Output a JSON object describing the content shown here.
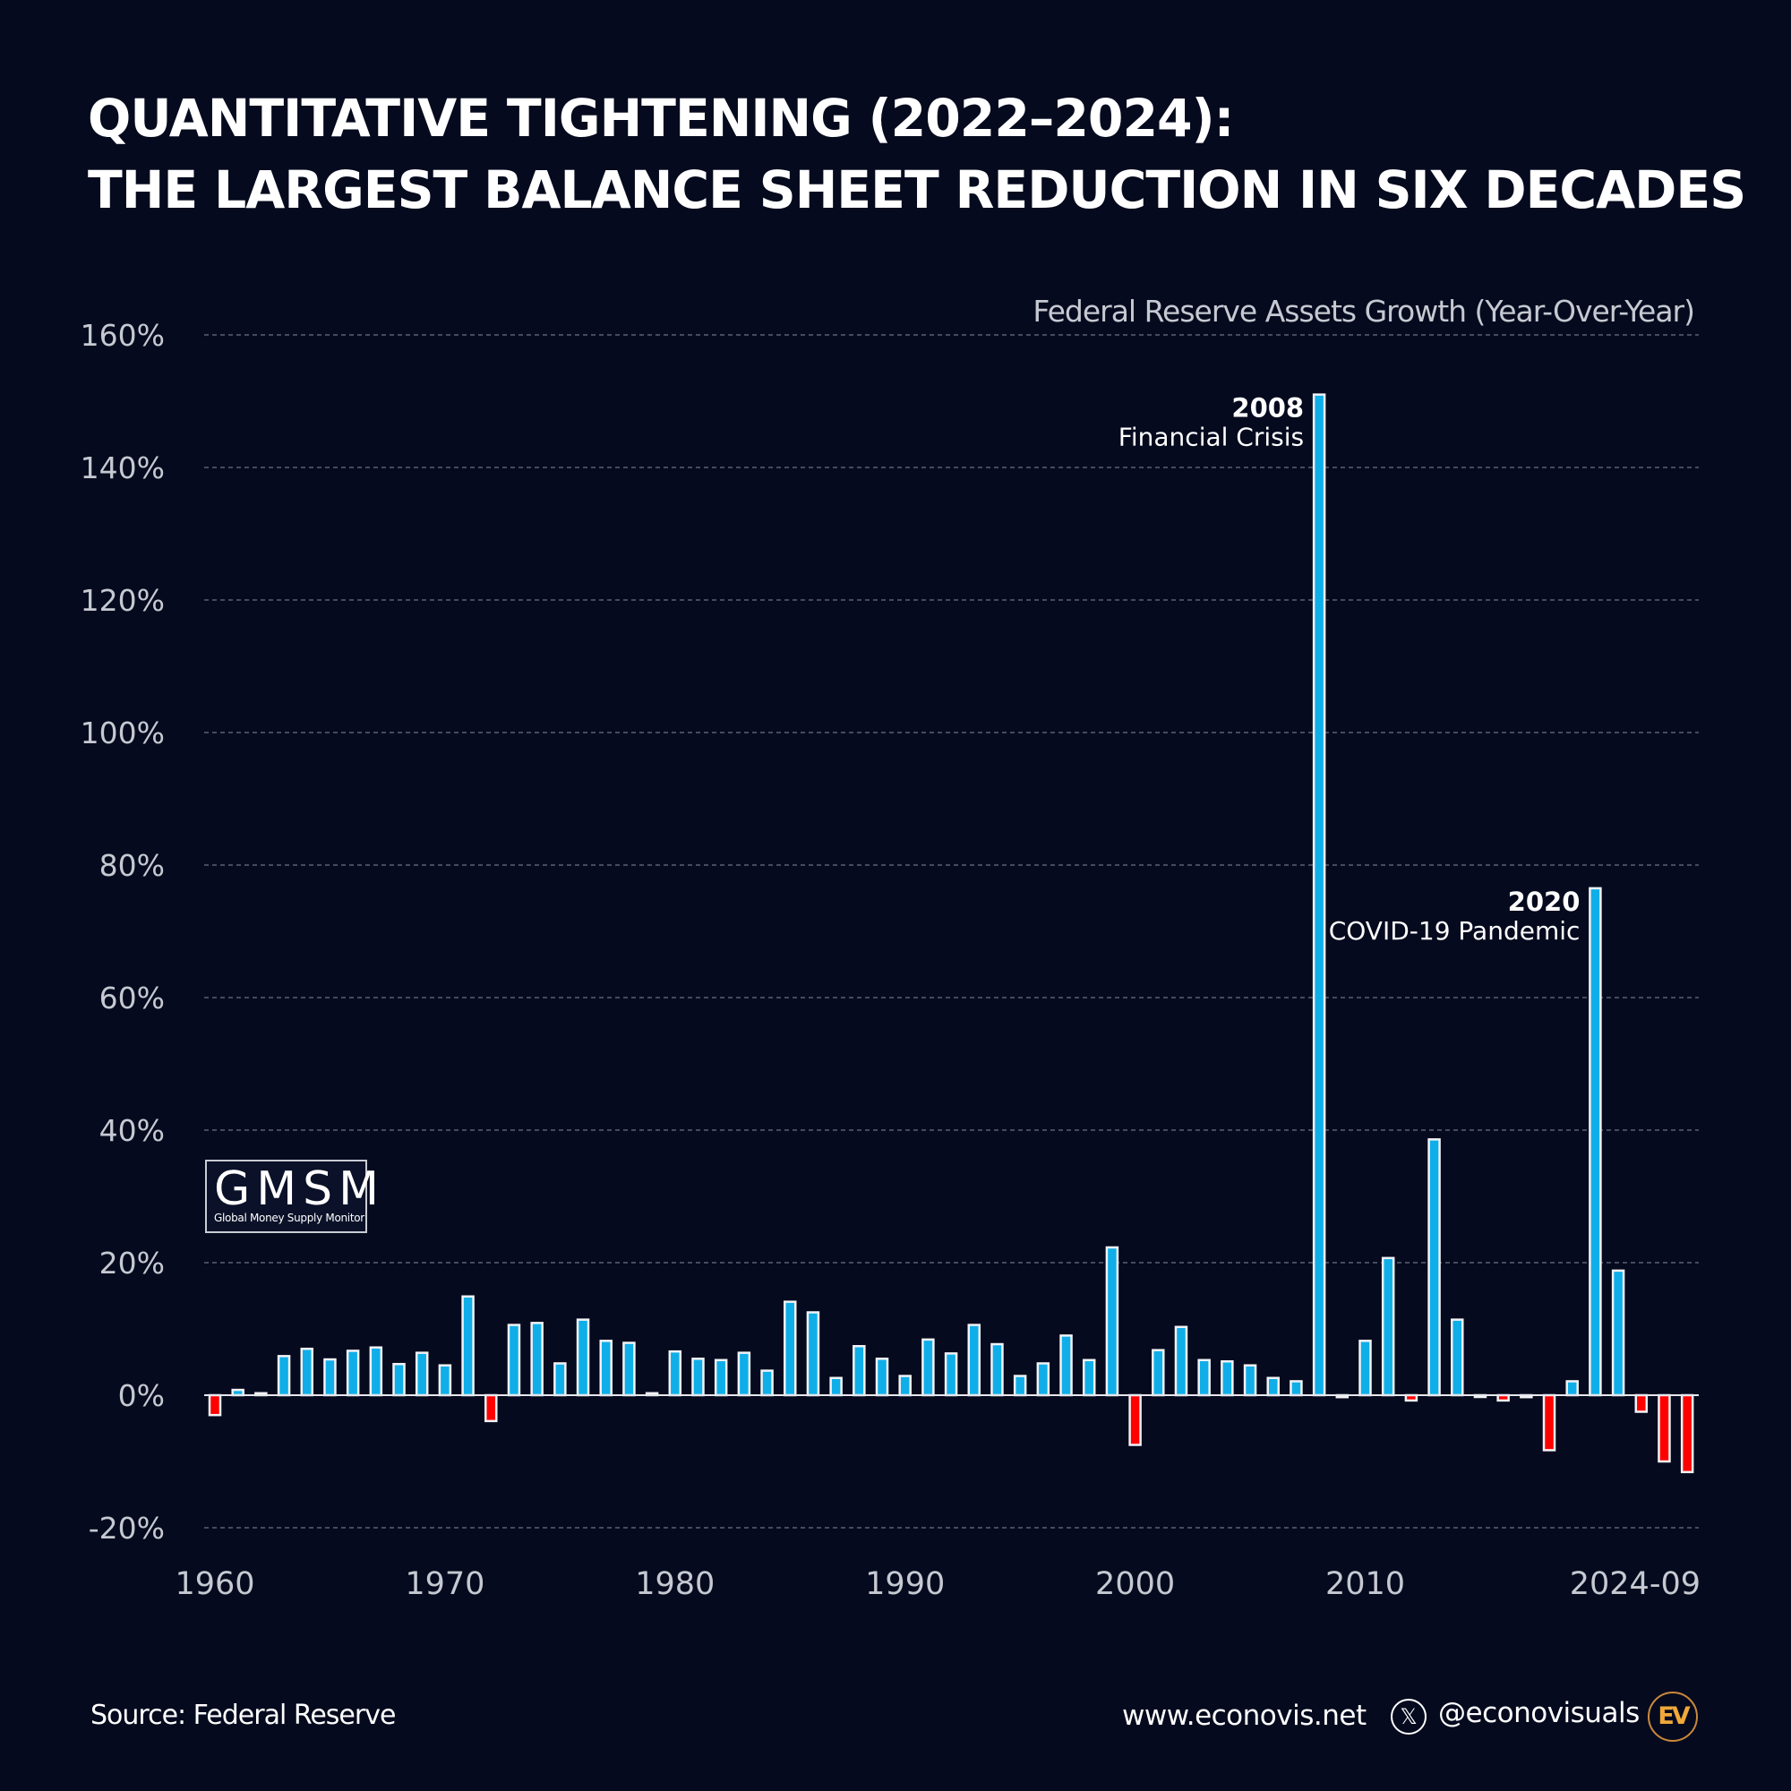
{
  "title": {
    "line1": "QUANTITATIVE TIGHTENING (2022–2024):",
    "line2": "THE LARGEST BALANCE SHEET REDUCTION IN SIX DECADES"
  },
  "subtitle": "Federal Reserve Assets Growth (Year-Over-Year)",
  "logo": {
    "main": "GMSM",
    "sub": "Global Money Supply Monitor"
  },
  "footer": {
    "source": "Source: Federal Reserve",
    "website": "www.econovis.net",
    "handle": "@econovisuals",
    "x_icon": "x-logo-icon",
    "brand_logo": "EV"
  },
  "colors": {
    "background": "#050a1e",
    "positive": "#10aee8",
    "negative": "#ff0000",
    "bar_outline": "#f2f2f5",
    "grid": "#5b6070",
    "axis_text": "#c6c9d1"
  },
  "chart_data": {
    "type": "bar",
    "title": "Federal Reserve Assets Growth (Year-Over-Year)",
    "xlabel": "",
    "ylabel": "",
    "unit": "%",
    "ylim": [
      -20,
      160
    ],
    "yticks": [
      -20,
      0,
      20,
      40,
      60,
      80,
      100,
      120,
      140,
      160
    ],
    "ytick_labels": [
      "-20%",
      "0%",
      "20%",
      "40%",
      "60%",
      "80%",
      "100%",
      "120%",
      "140%",
      "160%"
    ],
    "xtick_labels": [
      {
        "category": "1960",
        "label": "1960"
      },
      {
        "category": "1970",
        "label": "1970"
      },
      {
        "category": "1980",
        "label": "1980"
      },
      {
        "category": "1990",
        "label": "1990"
      },
      {
        "category": "2000",
        "label": "2000"
      },
      {
        "category": "2010",
        "label": "2010"
      },
      {
        "category": "2024",
        "label": "2024-09"
      }
    ],
    "grid": true,
    "categories": [
      "1960",
      "1961",
      "1962",
      "1963",
      "1964",
      "1965",
      "1966",
      "1967",
      "1968",
      "1969",
      "1970",
      "1971",
      "1972",
      "1973",
      "1974",
      "1975",
      "1976",
      "1977",
      "1978",
      "1979",
      "1980",
      "1981",
      "1982",
      "1983",
      "1984",
      "1985",
      "1986",
      "1987",
      "1988",
      "1989",
      "1990",
      "1991",
      "1992",
      "1993",
      "1994",
      "1995",
      "1996",
      "1997",
      "1998",
      "1999",
      "2000",
      "2001",
      "2002",
      "2003",
      "2004",
      "2005",
      "2006",
      "2007",
      "2008",
      "2009",
      "2010",
      "2011",
      "2012",
      "2013",
      "2014",
      "2015",
      "2016",
      "2017",
      "2018",
      "2019",
      "2020",
      "2021",
      "2022",
      "2023",
      "2024"
    ],
    "values": [
      -3.0,
      0.8,
      0.3,
      5.9,
      7.0,
      5.4,
      6.7,
      7.2,
      4.7,
      6.4,
      4.5,
      14.9,
      -3.9,
      10.6,
      10.9,
      4.8,
      11.4,
      8.2,
      7.9,
      0.3,
      6.6,
      5.5,
      5.3,
      6.4,
      3.7,
      14.1,
      12.5,
      2.6,
      7.4,
      5.5,
      2.9,
      8.4,
      6.3,
      10.6,
      7.7,
      2.9,
      4.8,
      9.0,
      5.3,
      22.3,
      -7.5,
      6.8,
      10.3,
      5.3,
      5.1,
      4.5,
      2.6,
      2.1,
      151.0,
      -0.3,
      8.2,
      20.7,
      -0.8,
      38.6,
      11.4,
      -0.2,
      -0.8,
      -0.3,
      -8.3,
      2.1,
      76.5,
      18.8,
      -2.5,
      -10.0,
      -11.6
    ],
    "annotations": [
      {
        "category": "2008",
        "year": "2008",
        "text": "Financial Crisis"
      },
      {
        "category": "2020",
        "year": "2020",
        "text": "COVID-19 Pandemic"
      }
    ]
  }
}
